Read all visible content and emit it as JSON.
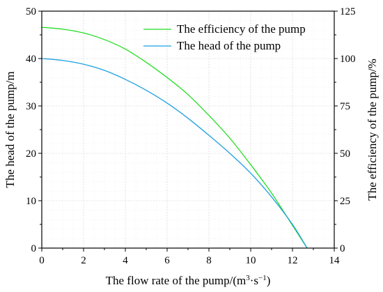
{
  "chart_data": {
    "type": "line",
    "xlabel_prefix": "The flow rate of the pump/(m",
    "xlabel_sup1": "3",
    "xlabel_mid": "·s",
    "xlabel_sup2": "−1",
    "xlabel_suffix": ")",
    "ylabel_left": "The head of the pump/m",
    "ylabel_right": "The efficiency of the pump/%",
    "xlim": [
      0,
      14
    ],
    "ylim_left": [
      0,
      50
    ],
    "ylim_right": [
      0,
      125
    ],
    "x_ticks": [
      0,
      2,
      4,
      6,
      8,
      10,
      12,
      14
    ],
    "y_ticks_left": [
      0,
      10,
      20,
      30,
      40,
      50
    ],
    "y_ticks_right": [
      0,
      25,
      50,
      75,
      100,
      125
    ],
    "grid": true,
    "legend_position": "top-right",
    "series": [
      {
        "name": "The efficiency of the pump",
        "axis": "right",
        "color": "#22dd22",
        "x": [
          0,
          1,
          2,
          3,
          4,
          5,
          6,
          7,
          8,
          9,
          10,
          11,
          12,
          12.7
        ],
        "values": [
          116.5,
          115.5,
          113.5,
          110,
          105,
          98,
          90,
          81,
          70,
          58,
          44,
          29,
          12,
          0
        ]
      },
      {
        "name": "The head of the pump",
        "axis": "left",
        "color": "#1e9fe0",
        "x": [
          0,
          1,
          2,
          3,
          4,
          5,
          6,
          7,
          8,
          9,
          10,
          11,
          12,
          12.7
        ],
        "values": [
          40,
          39.6,
          38.8,
          37.5,
          35.6,
          33.3,
          30.6,
          27.4,
          23.8,
          20,
          15.8,
          10.8,
          5,
          0
        ]
      }
    ]
  }
}
